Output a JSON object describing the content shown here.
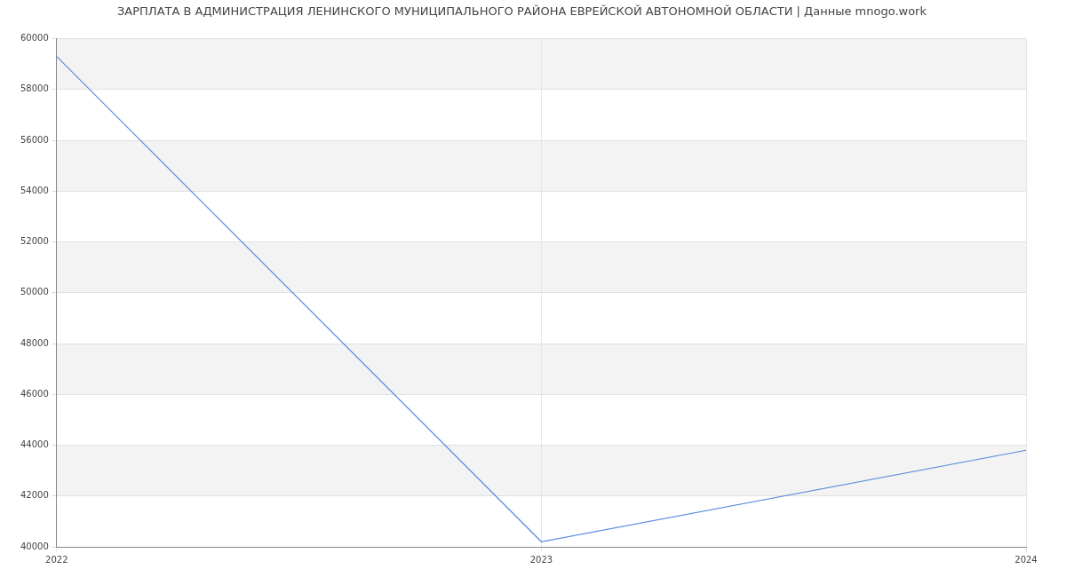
{
  "chart_data": {
    "type": "line",
    "title": "ЗАРПЛАТА В АДМИНИСТРАЦИЯ ЛЕНИНСКОГО МУНИЦИПАЛЬНОГО РАЙОНА ЕВРЕЙСКОЙ АВТОНОМНОЙ ОБЛАСТИ | Данные mnogo.work",
    "categories": [
      "2022",
      "2023",
      "2024"
    ],
    "values": [
      59300,
      40200,
      43800
    ],
    "color": "#5b8be0",
    "ylim": [
      40000,
      60000
    ],
    "yticks": [
      40000,
      42000,
      44000,
      46000,
      48000,
      50000,
      52000,
      54000,
      56000,
      58000,
      60000
    ],
    "grid": true
  }
}
